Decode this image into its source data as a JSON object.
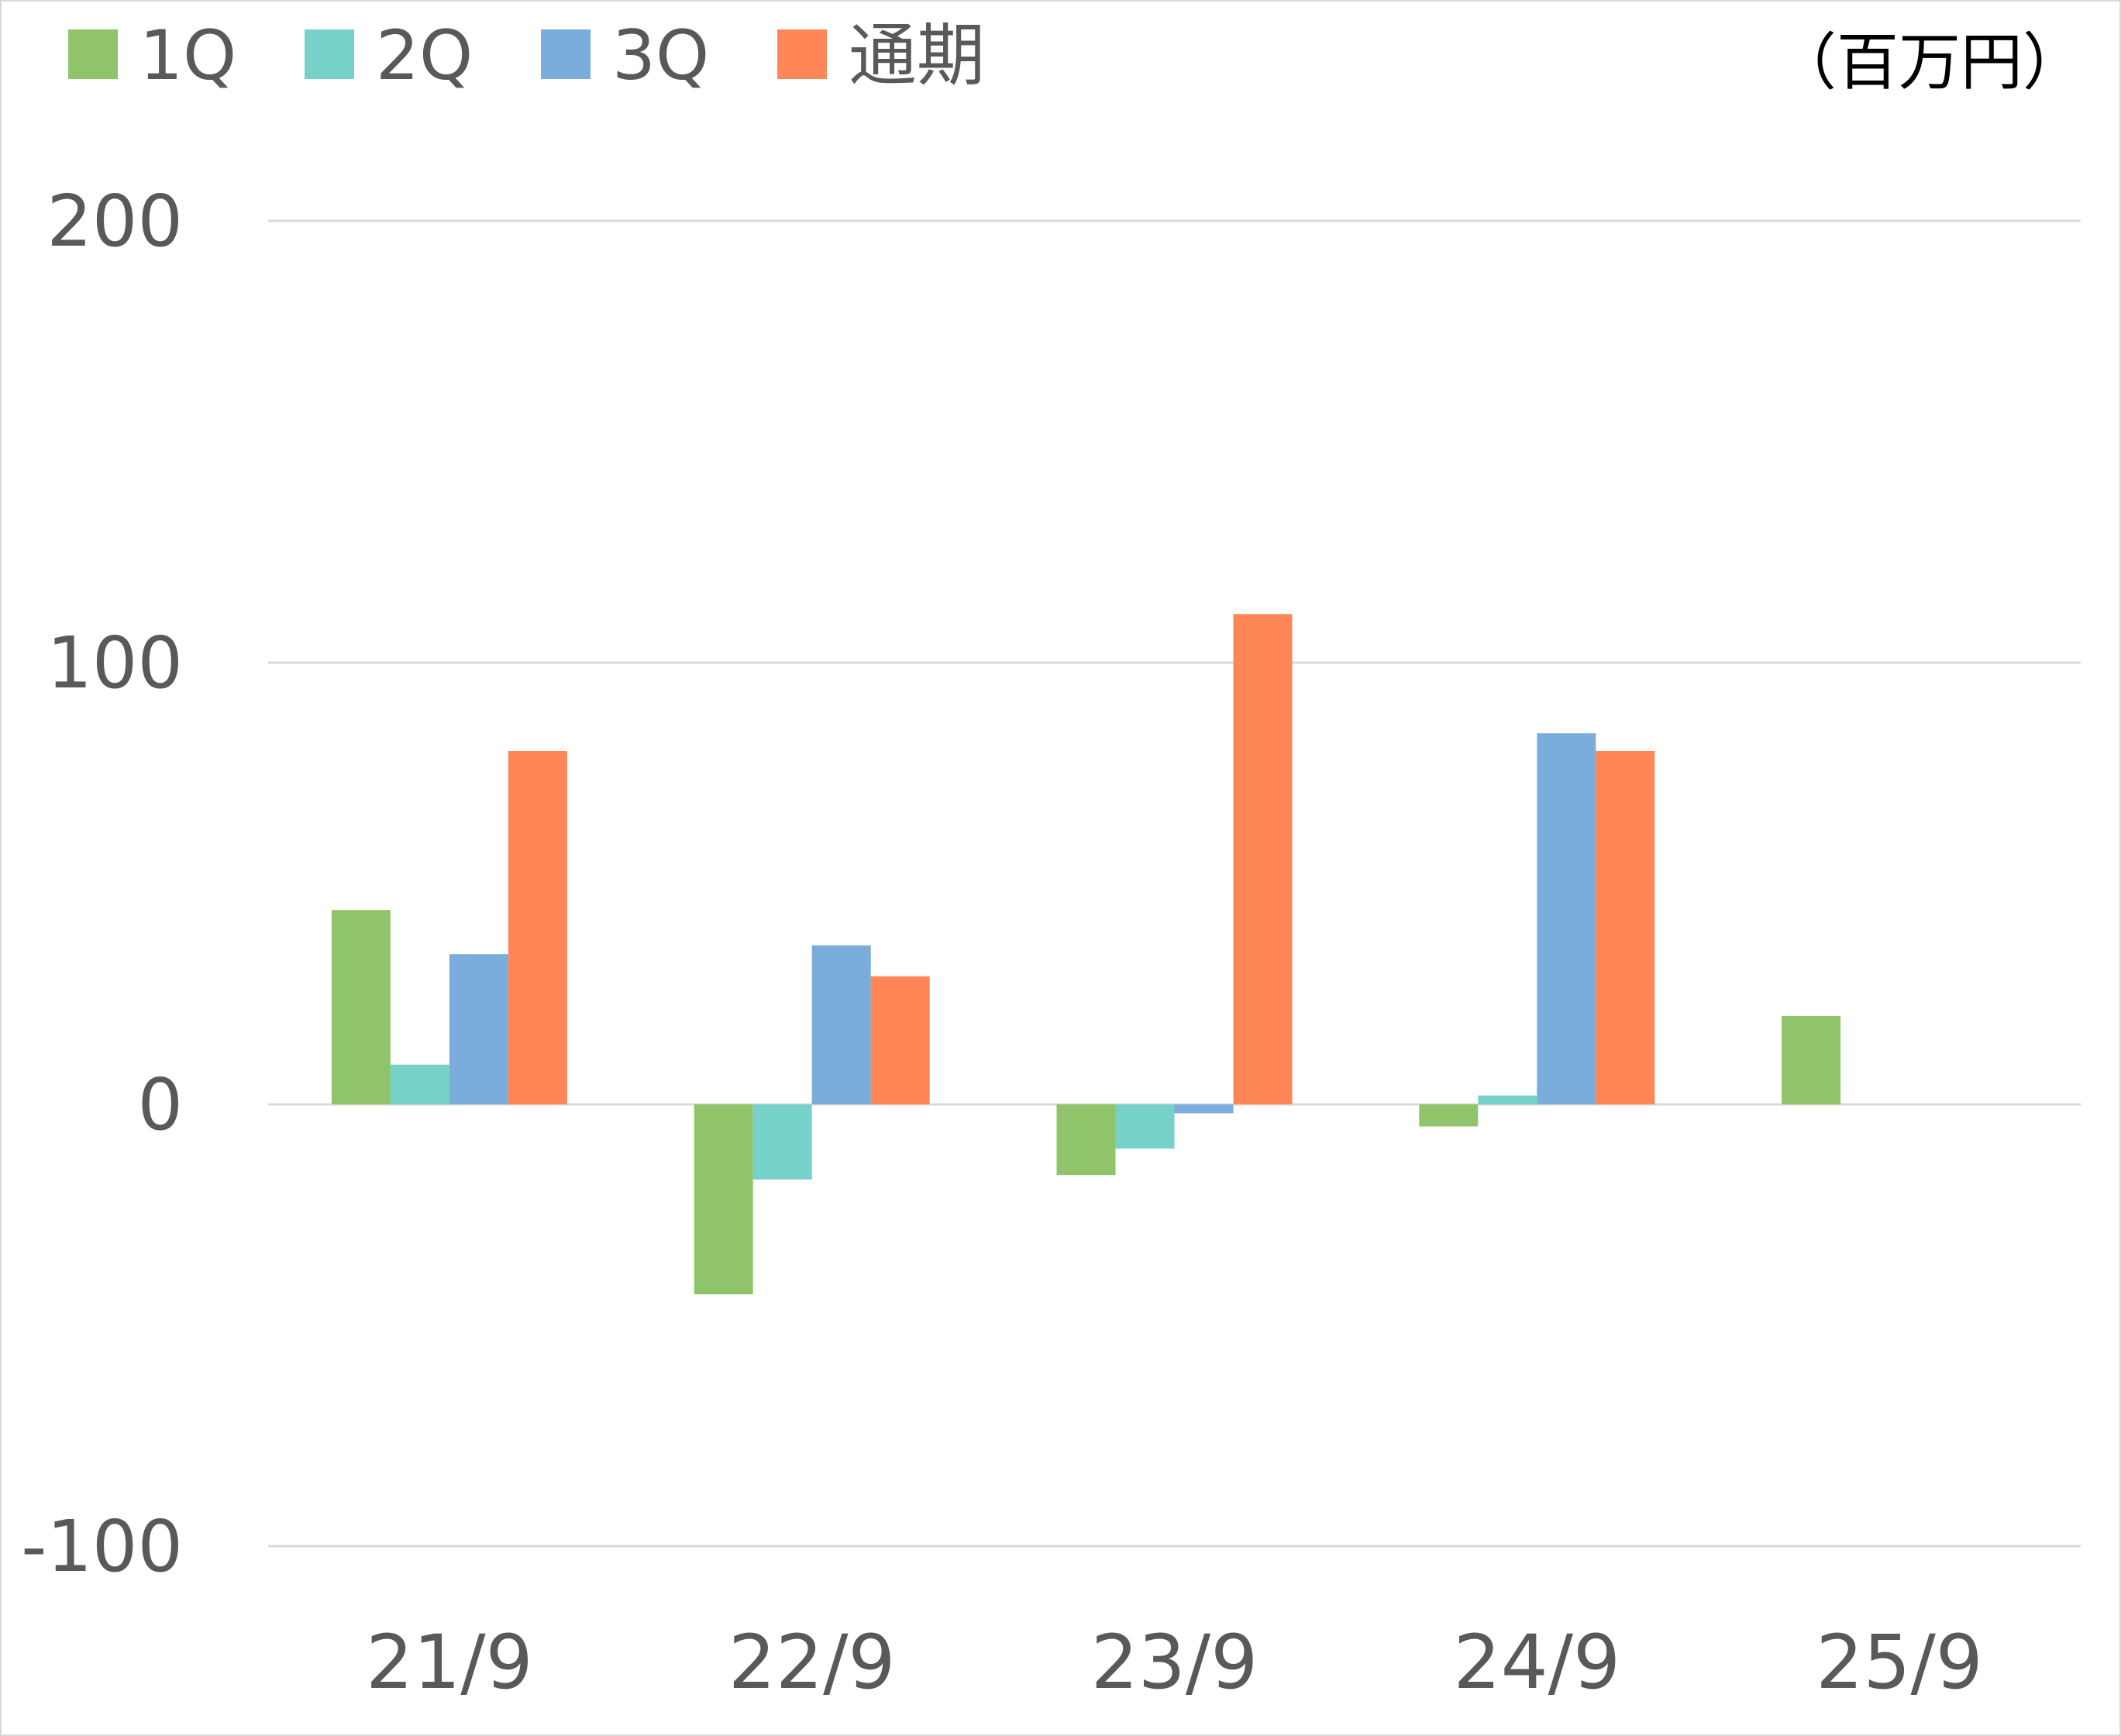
{
  "chart_data": {
    "type": "bar",
    "unit_label": "（百万円）",
    "categories": [
      "21/9",
      "22/9",
      "23/9",
      "24/9",
      "25/9"
    ],
    "series": [
      {
        "name": "1Q",
        "color": "#8fc46a",
        "values": [
          44,
          -43,
          -16,
          -5,
          20
        ]
      },
      {
        "name": "2Q",
        "color": "#76d1c9",
        "values": [
          9,
          -17,
          -10,
          2,
          null
        ]
      },
      {
        "name": "3Q",
        "color": "#7aacdc",
        "values": [
          34,
          36,
          -2,
          84,
          null
        ]
      },
      {
        "name": "通期",
        "color": "#ff8757",
        "values": [
          80,
          29,
          111,
          80,
          null
        ]
      }
    ],
    "ylim": [
      -100,
      200
    ],
    "yticks": [
      "200",
      "100",
      "0",
      "-100"
    ],
    "grid": true,
    "legend_position": "top-left"
  }
}
